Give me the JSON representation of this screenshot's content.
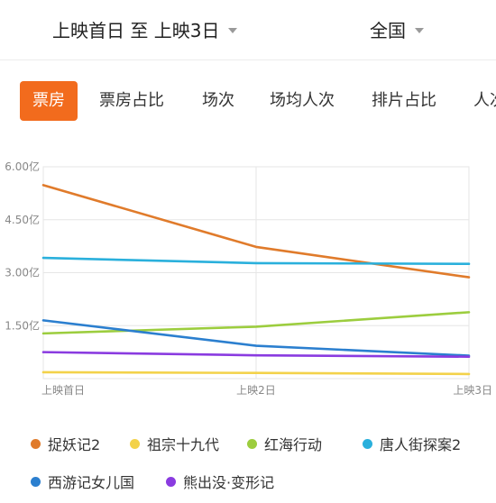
{
  "header": {
    "date_range": "上映首日 至 上映3日",
    "region": "全国"
  },
  "tabs": [
    {
      "label": "票房",
      "active": true
    },
    {
      "label": "票房占比",
      "active": false
    },
    {
      "label": "场次",
      "active": false
    },
    {
      "label": "场均人次",
      "active": false
    },
    {
      "label": "排片占比",
      "active": false
    },
    {
      "label": "人次",
      "active": false
    }
  ],
  "colors": {
    "accent": "#f26b1d",
    "grid": "#e6e6e6",
    "axis_text": "#888888"
  },
  "chart_data": {
    "type": "line",
    "x": [
      "上映首日",
      "上映2日",
      "上映3日"
    ],
    "y_ticks": [
      "6.00亿",
      "4.50亿",
      "3.00亿",
      "1.50亿"
    ],
    "y_tick_values": [
      6.0,
      4.5,
      3.0,
      1.5
    ],
    "ylim": [
      0,
      6.0
    ],
    "unit": "亿",
    "grid": true,
    "legend_position": "bottom",
    "series": [
      {
        "name": "捉妖记2",
        "color": "#e07b2b",
        "values": [
          5.48,
          3.73,
          2.87
        ]
      },
      {
        "name": "祖宗十九代",
        "color": "#f3d24a",
        "values": [
          0.18,
          0.16,
          0.13
        ]
      },
      {
        "name": "红海行动",
        "color": "#9ccd3e",
        "values": [
          1.28,
          1.47,
          1.88
        ]
      },
      {
        "name": "唐人街探案2",
        "color": "#2ab0dc",
        "values": [
          3.42,
          3.27,
          3.25
        ]
      },
      {
        "name": "西游记女儿国",
        "color": "#2b7fcf",
        "values": [
          1.65,
          0.93,
          0.65
        ]
      },
      {
        "name": "熊出没·变形记",
        "color": "#8a3be0",
        "values": [
          0.75,
          0.66,
          0.62
        ]
      }
    ]
  }
}
